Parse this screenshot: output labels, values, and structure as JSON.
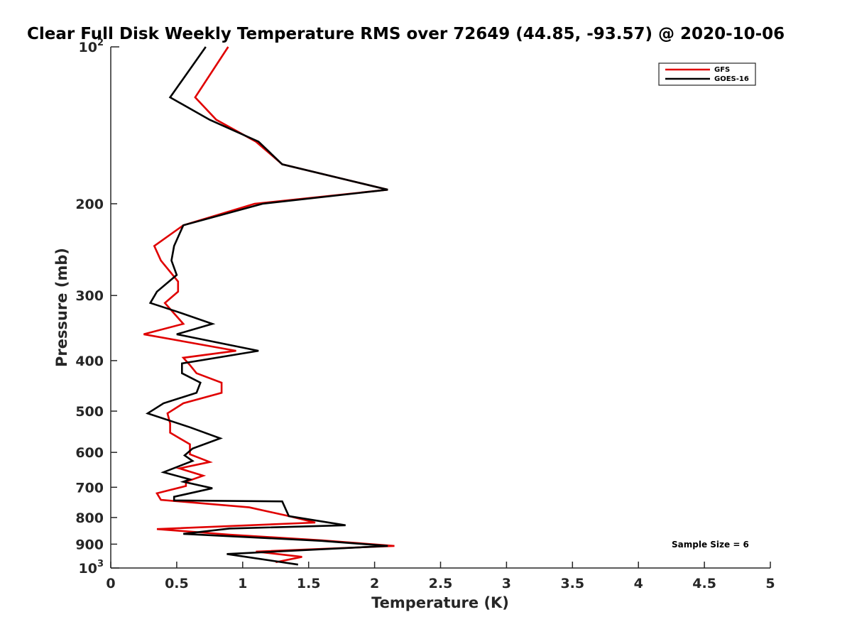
{
  "chart_data": {
    "type": "line",
    "title": "Clear Full Disk Weekly Temperature RMS over 72649 (44.85, -93.57) @ 2020-10-06",
    "xlabel": "Temperature (K)",
    "ylabel": "Pressure (mb)",
    "xlim": [
      0,
      5
    ],
    "ylim": [
      100,
      1000
    ],
    "y_scale": "log",
    "y_reversed": true,
    "grid": false,
    "legend_position": "top-right",
    "x_ticks": [
      0,
      0.5,
      1,
      1.5,
      2,
      2.5,
      3,
      3.5,
      4,
      4.5,
      5
    ],
    "x_tick_labels": [
      "0",
      "0.5",
      "1",
      "1.5",
      "2",
      "2.5",
      "3",
      "3.5",
      "4",
      "4.5",
      "5"
    ],
    "y_ticks": [
      200,
      300,
      400,
      500,
      600,
      700,
      800,
      900
    ],
    "y_tick_labels": [
      "200",
      "300",
      "400",
      "500",
      "600",
      "700",
      "800",
      "900"
    ],
    "y_end_labels": [
      {
        "base": "10",
        "exp": "2",
        "value": 100
      },
      {
        "base": "10",
        "exp": "3",
        "value": 1000
      }
    ],
    "annotation": "Sample Size = 6",
    "series": [
      {
        "name": "GFS",
        "color": "#e00000",
        "points": [
          [
            0.89,
            100
          ],
          [
            0.64,
            125
          ],
          [
            0.8,
            138
          ],
          [
            1.1,
            152
          ],
          [
            1.3,
            168
          ],
          [
            2.1,
            188
          ],
          [
            1.09,
            200
          ],
          [
            0.55,
            220
          ],
          [
            0.33,
            241
          ],
          [
            0.38,
            257
          ],
          [
            0.51,
            282
          ],
          [
            0.51,
            295
          ],
          [
            0.41,
            310
          ],
          [
            0.55,
            340
          ],
          [
            0.25,
            356
          ],
          [
            0.95,
            383
          ],
          [
            0.55,
            395
          ],
          [
            0.6,
            408
          ],
          [
            0.65,
            423
          ],
          [
            0.84,
            441
          ],
          [
            0.84,
            461
          ],
          [
            0.55,
            483
          ],
          [
            0.43,
            505
          ],
          [
            0.45,
            528
          ],
          [
            0.45,
            550
          ],
          [
            0.6,
            579
          ],
          [
            0.6,
            605
          ],
          [
            0.75,
            626
          ],
          [
            0.52,
            644
          ],
          [
            0.7,
            665
          ],
          [
            0.57,
            683
          ],
          [
            0.57,
            696
          ],
          [
            0.35,
            719
          ],
          [
            0.38,
            740
          ],
          [
            1.05,
            765
          ],
          [
            1.35,
            795
          ],
          [
            1.55,
            818
          ],
          [
            0.35,
            842
          ],
          [
            0.9,
            863
          ],
          [
            1.6,
            885
          ],
          [
            2.15,
            907
          ],
          [
            1.1,
            930
          ],
          [
            1.45,
            952
          ],
          [
            1.25,
            975
          ]
        ]
      },
      {
        "name": "GOES-16",
        "color": "#000000",
        "points": [
          [
            0.72,
            100
          ],
          [
            0.45,
            125
          ],
          [
            0.75,
            138
          ],
          [
            1.12,
            152
          ],
          [
            1.3,
            168
          ],
          [
            2.1,
            188
          ],
          [
            1.15,
            200
          ],
          [
            0.55,
            220
          ],
          [
            0.48,
            241
          ],
          [
            0.46,
            257
          ],
          [
            0.5,
            274
          ],
          [
            0.35,
            295
          ],
          [
            0.3,
            310
          ],
          [
            0.5,
            322
          ],
          [
            0.77,
            340
          ],
          [
            0.5,
            356
          ],
          [
            1.12,
            383
          ],
          [
            0.54,
            405
          ],
          [
            0.54,
            423
          ],
          [
            0.68,
            441
          ],
          [
            0.65,
            461
          ],
          [
            0.4,
            483
          ],
          [
            0.28,
            505
          ],
          [
            0.6,
            537
          ],
          [
            0.83,
            564
          ],
          [
            0.62,
            590
          ],
          [
            0.56,
            608
          ],
          [
            0.62,
            623
          ],
          [
            0.4,
            655
          ],
          [
            0.6,
            676
          ],
          [
            0.55,
            683
          ],
          [
            0.77,
            703
          ],
          [
            0.48,
            730
          ],
          [
            0.48,
            742
          ],
          [
            1.3,
            745
          ],
          [
            1.35,
            795
          ],
          [
            1.78,
            828
          ],
          [
            0.9,
            840
          ],
          [
            0.55,
            860
          ],
          [
            1.6,
            887
          ],
          [
            2.1,
            907
          ],
          [
            0.88,
            940
          ],
          [
            1.42,
            985
          ]
        ]
      }
    ]
  }
}
